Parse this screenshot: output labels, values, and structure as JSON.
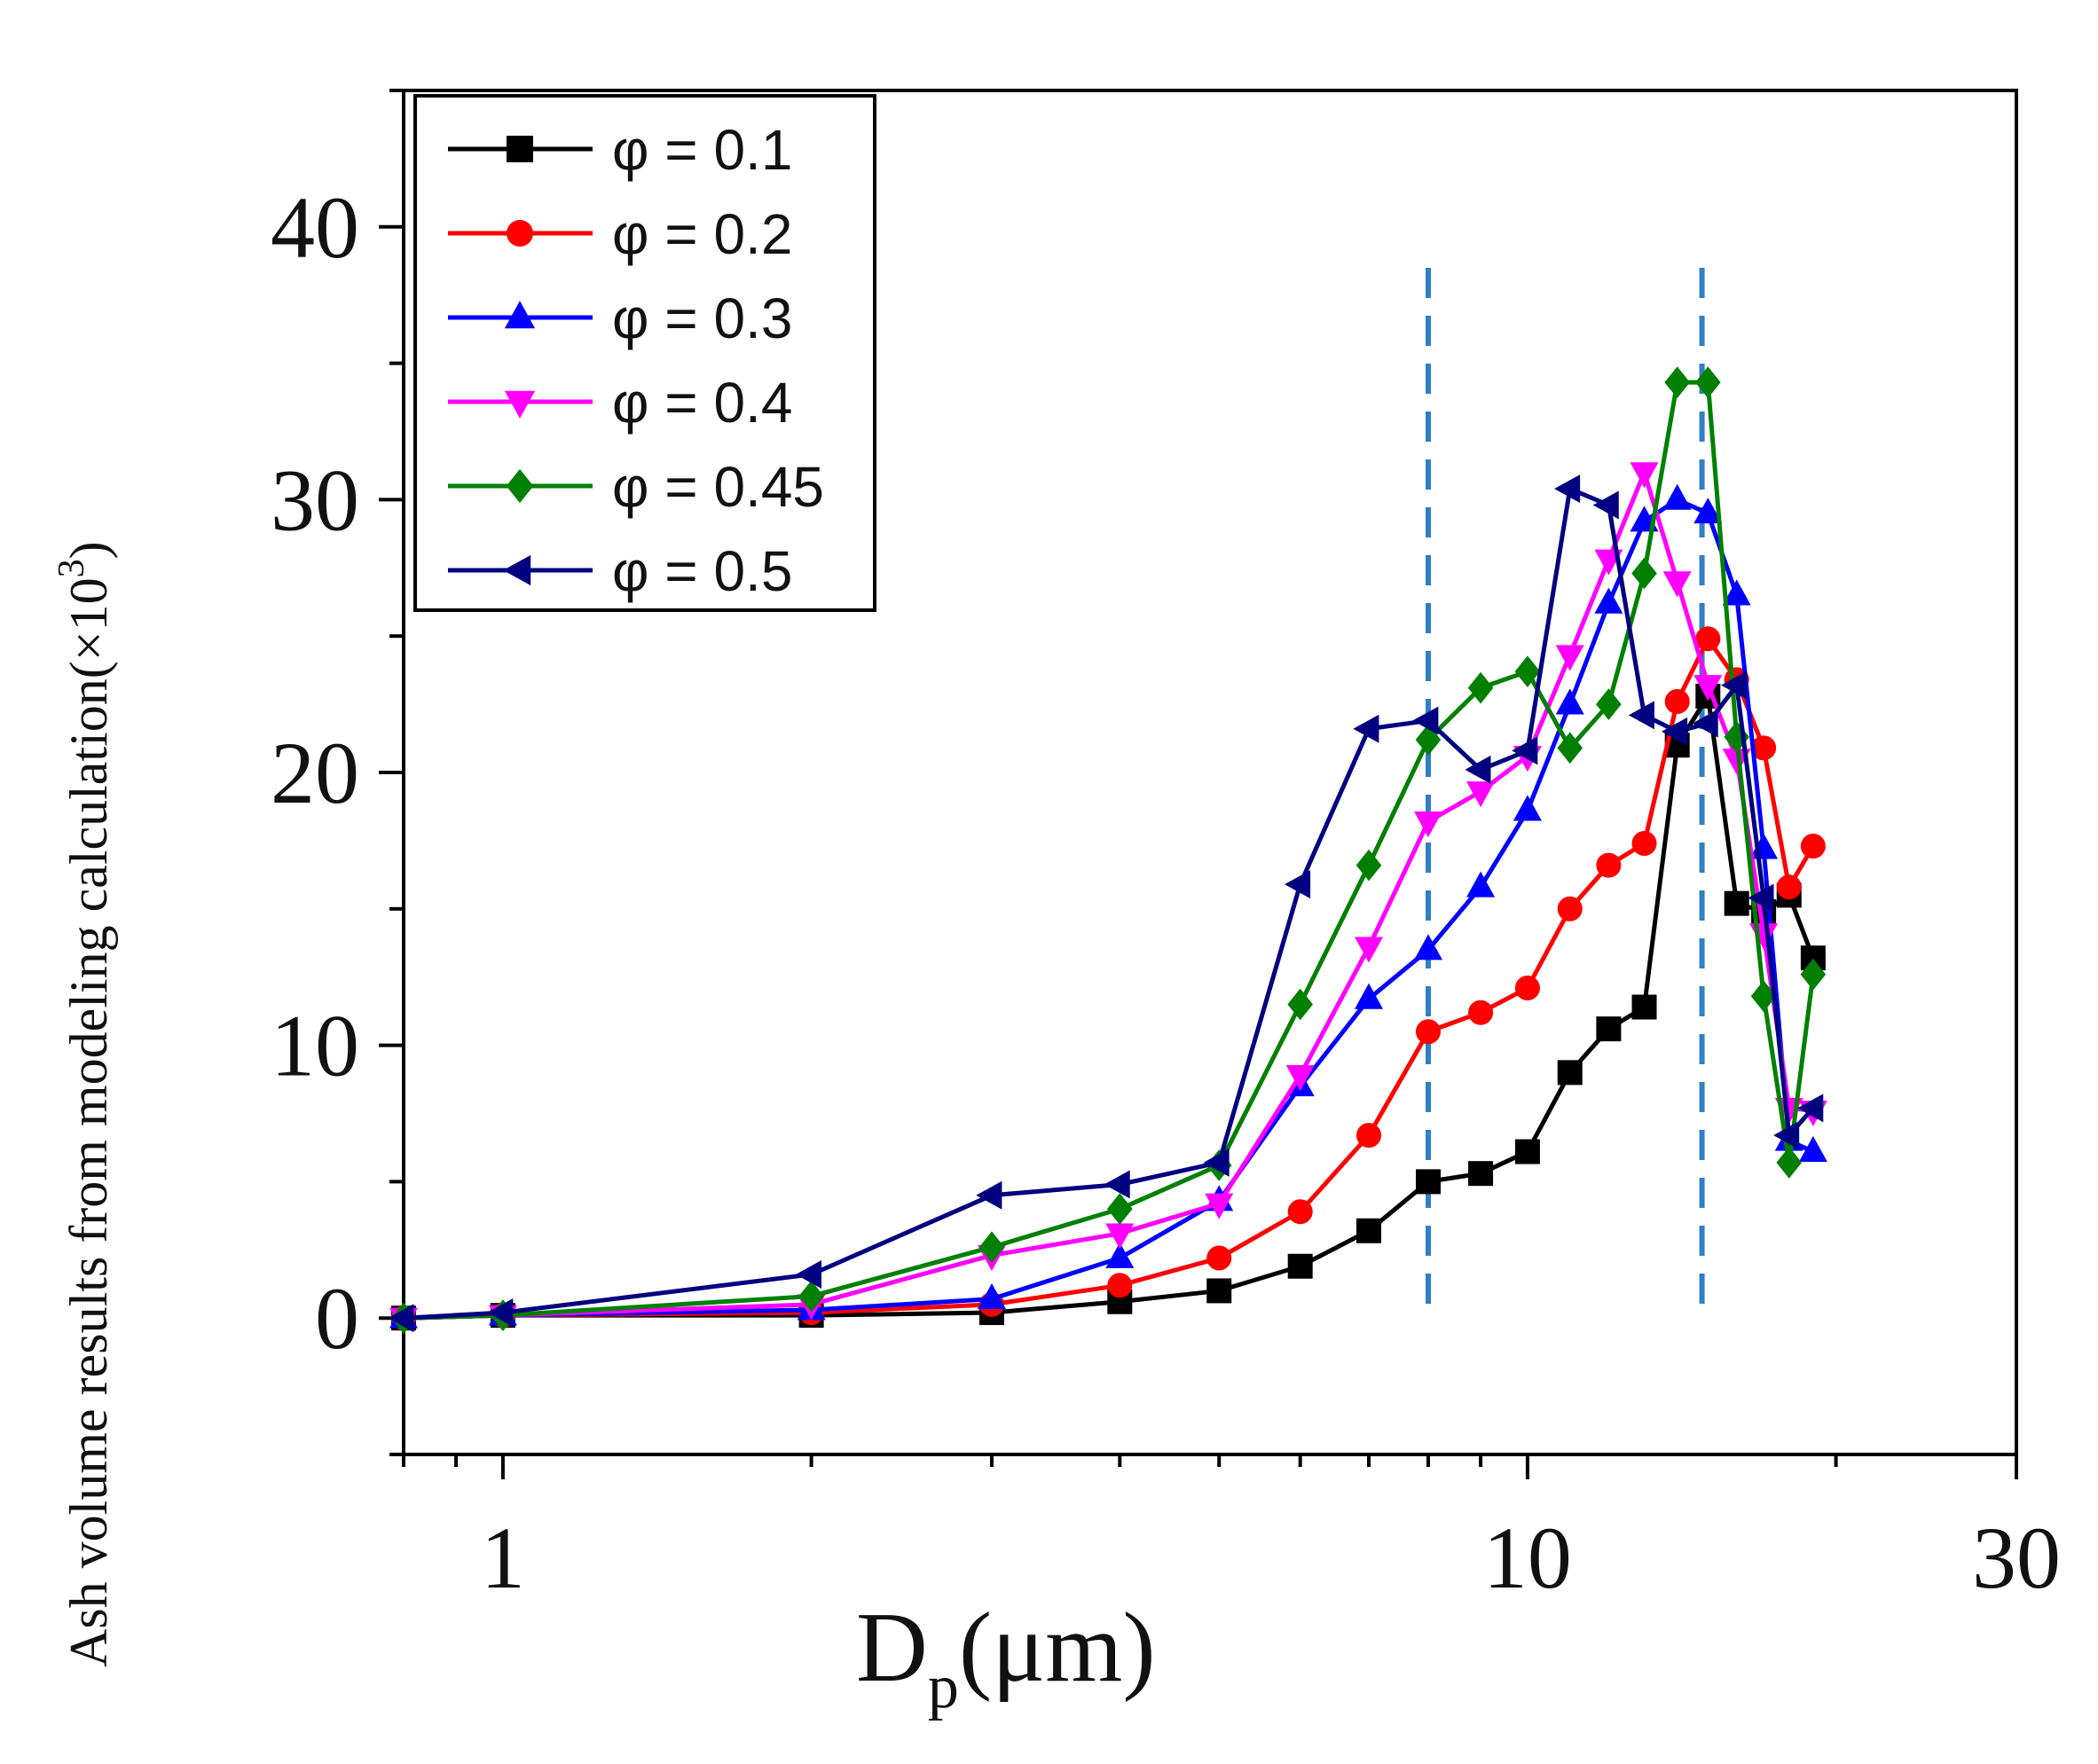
{
  "chart_data": {
    "type": "line",
    "xscale": "log",
    "xlim": [
      0.8,
      30
    ],
    "ylim": [
      -5,
      45
    ],
    "xlabel": "D",
    "xlabel_sub": "p",
    "xlabel_unit": "(μm)",
    "ylabel": "Ash volume results from modeling calculation(×10",
    "ylabel_sup": "3",
    "ylabel_end": ")",
    "xticks": [
      1,
      10,
      30
    ],
    "xtick_labels": [
      "1",
      "10",
      "30"
    ],
    "yticks": [
      0,
      10,
      20,
      30,
      40
    ],
    "ytick_labels": [
      "0",
      "10",
      "20",
      "30",
      "40"
    ],
    "grid": false,
    "legend_position": "top-left",
    "reference_lines_x": [
      8,
      14.8
    ],
    "x": [
      0.8,
      1,
      2,
      3,
      4,
      5,
      6,
      7,
      8,
      9,
      10,
      11,
      12,
      13,
      14,
      15,
      16,
      17,
      18,
      19
    ],
    "series": [
      {
        "name": "φ = 0.1",
        "color": "#000000",
        "marker": "square",
        "values": [
          0,
          0.1,
          0.1,
          0.2,
          0.6,
          1.0,
          1.9,
          3.2,
          5.0,
          5.3,
          6.1,
          9.0,
          10.6,
          11.4,
          21.0,
          22.8,
          15.2,
          14.9,
          15.5,
          13.2
        ]
      },
      {
        "name": "φ = 0.2",
        "color": "#ff0000",
        "marker": "circle",
        "values": [
          0,
          0.1,
          0.2,
          0.5,
          1.2,
          2.2,
          3.9,
          6.7,
          10.5,
          11.2,
          12.1,
          15.0,
          16.6,
          17.4,
          22.6,
          24.9,
          23.4,
          20.9,
          15.8,
          17.3
        ]
      },
      {
        "name": "φ = 0.3",
        "color": "#0000ff",
        "marker": "triangle-up",
        "values": [
          0,
          0.1,
          0.3,
          0.7,
          2.2,
          4.3,
          8.5,
          11.7,
          13.5,
          15.8,
          18.6,
          22.5,
          26.2,
          29.2,
          30.0,
          29.5,
          26.5,
          17.2,
          6.5,
          6.1
        ]
      },
      {
        "name": "φ = 0.4",
        "color": "#ff00ff",
        "marker": "triangle-down",
        "values": [
          0,
          0.1,
          0.5,
          2.3,
          3.1,
          4.2,
          8.9,
          13.6,
          18.2,
          19.3,
          20.6,
          24.3,
          27.8,
          31.0,
          27.0,
          23.2,
          20.5,
          14.1,
          7.7,
          7.6
        ]
      },
      {
        "name": "φ = 0.45",
        "color": "#008000",
        "marker": "diamond",
        "values": [
          0,
          0.1,
          0.8,
          2.6,
          4.0,
          5.6,
          11.5,
          16.6,
          21.2,
          23.1,
          23.7,
          20.9,
          22.5,
          27.3,
          34.3,
          34.3,
          21.3,
          11.8,
          5.7,
          12.6
        ]
      },
      {
        "name": "φ = 0.5",
        "color": "#000080",
        "marker": "triangle-left",
        "values": [
          0,
          0.2,
          1.6,
          4.5,
          4.9,
          5.7,
          15.9,
          21.6,
          21.9,
          20.1,
          20.8,
          30.4,
          29.8,
          22.1,
          21.5,
          21.8,
          23.2,
          15.4,
          6.7,
          7.7
        ]
      }
    ]
  }
}
